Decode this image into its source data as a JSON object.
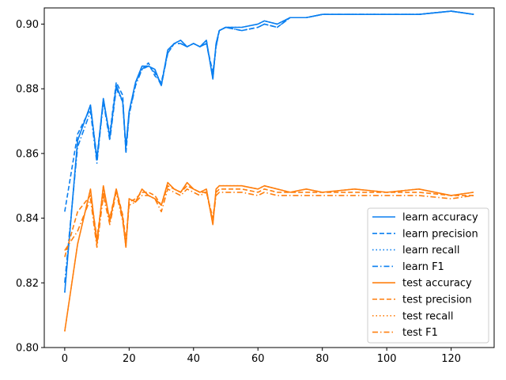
{
  "chart_data": {
    "type": "line",
    "title": "",
    "xlabel": "",
    "ylabel": "",
    "xlim": [
      -6.35,
      133.35
    ],
    "ylim": [
      0.8,
      0.905
    ],
    "x_ticks": [
      0,
      20,
      40,
      60,
      80,
      100,
      120
    ],
    "x_tick_labels": [
      "0",
      "20",
      "40",
      "60",
      "80",
      "100",
      "120"
    ],
    "y_ticks": [
      0.8,
      0.82,
      0.84,
      0.86,
      0.88,
      0.9
    ],
    "y_tick_labels": [
      "0.80",
      "0.82",
      "0.84",
      "0.86",
      "0.88",
      "0.90"
    ],
    "grid": false,
    "legend_position": "lower-right",
    "x": [
      0,
      4,
      8,
      10,
      12,
      14,
      16,
      18,
      19,
      20,
      22,
      24,
      26,
      28,
      30,
      32,
      34,
      36,
      38,
      40,
      42,
      44,
      46,
      47,
      48,
      50,
      55,
      60,
      62,
      66,
      70,
      75,
      80,
      90,
      100,
      110,
      120,
      127
    ],
    "series": [
      {
        "name": "learn accuracy",
        "color": "#0a7ff0",
        "dash": "solid",
        "values": [
          0.817,
          0.864,
          0.875,
          0.858,
          0.877,
          0.865,
          0.881,
          0.876,
          0.862,
          0.873,
          0.882,
          0.887,
          0.887,
          0.886,
          0.881,
          0.892,
          0.894,
          0.895,
          0.893,
          0.894,
          0.893,
          0.895,
          0.883,
          0.894,
          0.898,
          0.899,
          0.899,
          0.9,
          0.901,
          0.9,
          0.902,
          0.902,
          0.903,
          0.903,
          0.903,
          0.903,
          0.904,
          0.903
        ]
      },
      {
        "name": "learn precision",
        "color": "#0a7ff0",
        "dash": "dashed",
        "values": [
          0.842,
          0.866,
          0.874,
          0.859,
          0.876,
          0.866,
          0.882,
          0.878,
          0.86,
          0.872,
          0.882,
          0.886,
          0.888,
          0.884,
          0.882,
          0.891,
          0.894,
          0.894,
          0.893,
          0.894,
          0.893,
          0.894,
          0.885,
          0.893,
          0.898,
          0.899,
          0.898,
          0.899,
          0.9,
          0.899,
          0.902,
          0.902,
          0.903,
          0.903,
          0.903,
          0.903,
          0.904,
          0.903
        ]
      },
      {
        "name": "learn recall",
        "color": "#0a7ff0",
        "dash": "dotted",
        "values": [
          0.817,
          0.864,
          0.875,
          0.858,
          0.877,
          0.865,
          0.881,
          0.876,
          0.862,
          0.873,
          0.882,
          0.887,
          0.887,
          0.886,
          0.881,
          0.892,
          0.894,
          0.895,
          0.893,
          0.894,
          0.893,
          0.895,
          0.883,
          0.894,
          0.898,
          0.899,
          0.899,
          0.9,
          0.901,
          0.9,
          0.902,
          0.902,
          0.903,
          0.903,
          0.903,
          0.903,
          0.904,
          0.903
        ]
      },
      {
        "name": "learn F1",
        "color": "#0a7ff0",
        "dash": "dashdot",
        "values": [
          0.82,
          0.862,
          0.873,
          0.857,
          0.876,
          0.864,
          0.88,
          0.876,
          0.861,
          0.872,
          0.881,
          0.886,
          0.887,
          0.885,
          0.881,
          0.891,
          0.894,
          0.894,
          0.893,
          0.894,
          0.893,
          0.894,
          0.884,
          0.893,
          0.898,
          0.899,
          0.898,
          0.899,
          0.9,
          0.899,
          0.902,
          0.902,
          0.903,
          0.903,
          0.903,
          0.903,
          0.904,
          0.903
        ]
      },
      {
        "name": "test accuracy",
        "color": "#ff7f0e",
        "dash": "solid",
        "values": [
          0.805,
          0.832,
          0.849,
          0.832,
          0.85,
          0.839,
          0.849,
          0.84,
          0.831,
          0.846,
          0.845,
          0.849,
          0.847,
          0.846,
          0.844,
          0.851,
          0.849,
          0.848,
          0.851,
          0.849,
          0.848,
          0.849,
          0.838,
          0.849,
          0.85,
          0.85,
          0.85,
          0.849,
          0.85,
          0.849,
          0.848,
          0.849,
          0.848,
          0.849,
          0.848,
          0.849,
          0.847,
          0.848
        ]
      },
      {
        "name": "test precision",
        "color": "#ff7f0e",
        "dash": "dashed",
        "values": [
          0.828,
          0.842,
          0.847,
          0.834,
          0.848,
          0.84,
          0.849,
          0.841,
          0.833,
          0.845,
          0.846,
          0.848,
          0.848,
          0.847,
          0.844,
          0.85,
          0.849,
          0.848,
          0.85,
          0.849,
          0.848,
          0.848,
          0.84,
          0.848,
          0.849,
          0.849,
          0.849,
          0.848,
          0.849,
          0.848,
          0.848,
          0.848,
          0.848,
          0.848,
          0.848,
          0.848,
          0.847,
          0.847
        ]
      },
      {
        "name": "test recall",
        "color": "#ff7f0e",
        "dash": "dotted",
        "values": [
          0.805,
          0.832,
          0.849,
          0.832,
          0.85,
          0.839,
          0.849,
          0.84,
          0.831,
          0.846,
          0.845,
          0.849,
          0.847,
          0.846,
          0.844,
          0.851,
          0.849,
          0.848,
          0.851,
          0.849,
          0.848,
          0.849,
          0.838,
          0.849,
          0.85,
          0.85,
          0.85,
          0.849,
          0.85,
          0.849,
          0.848,
          0.849,
          0.848,
          0.849,
          0.848,
          0.849,
          0.847,
          0.848
        ]
      },
      {
        "name": "test F1",
        "color": "#ff7f0e",
        "dash": "dashdot",
        "values": [
          0.83,
          0.836,
          0.846,
          0.831,
          0.847,
          0.838,
          0.848,
          0.839,
          0.832,
          0.844,
          0.845,
          0.847,
          0.847,
          0.846,
          0.842,
          0.849,
          0.848,
          0.847,
          0.849,
          0.848,
          0.847,
          0.848,
          0.839,
          0.847,
          0.848,
          0.848,
          0.848,
          0.847,
          0.848,
          0.847,
          0.847,
          0.847,
          0.847,
          0.847,
          0.847,
          0.847,
          0.846,
          0.847
        ]
      }
    ]
  }
}
